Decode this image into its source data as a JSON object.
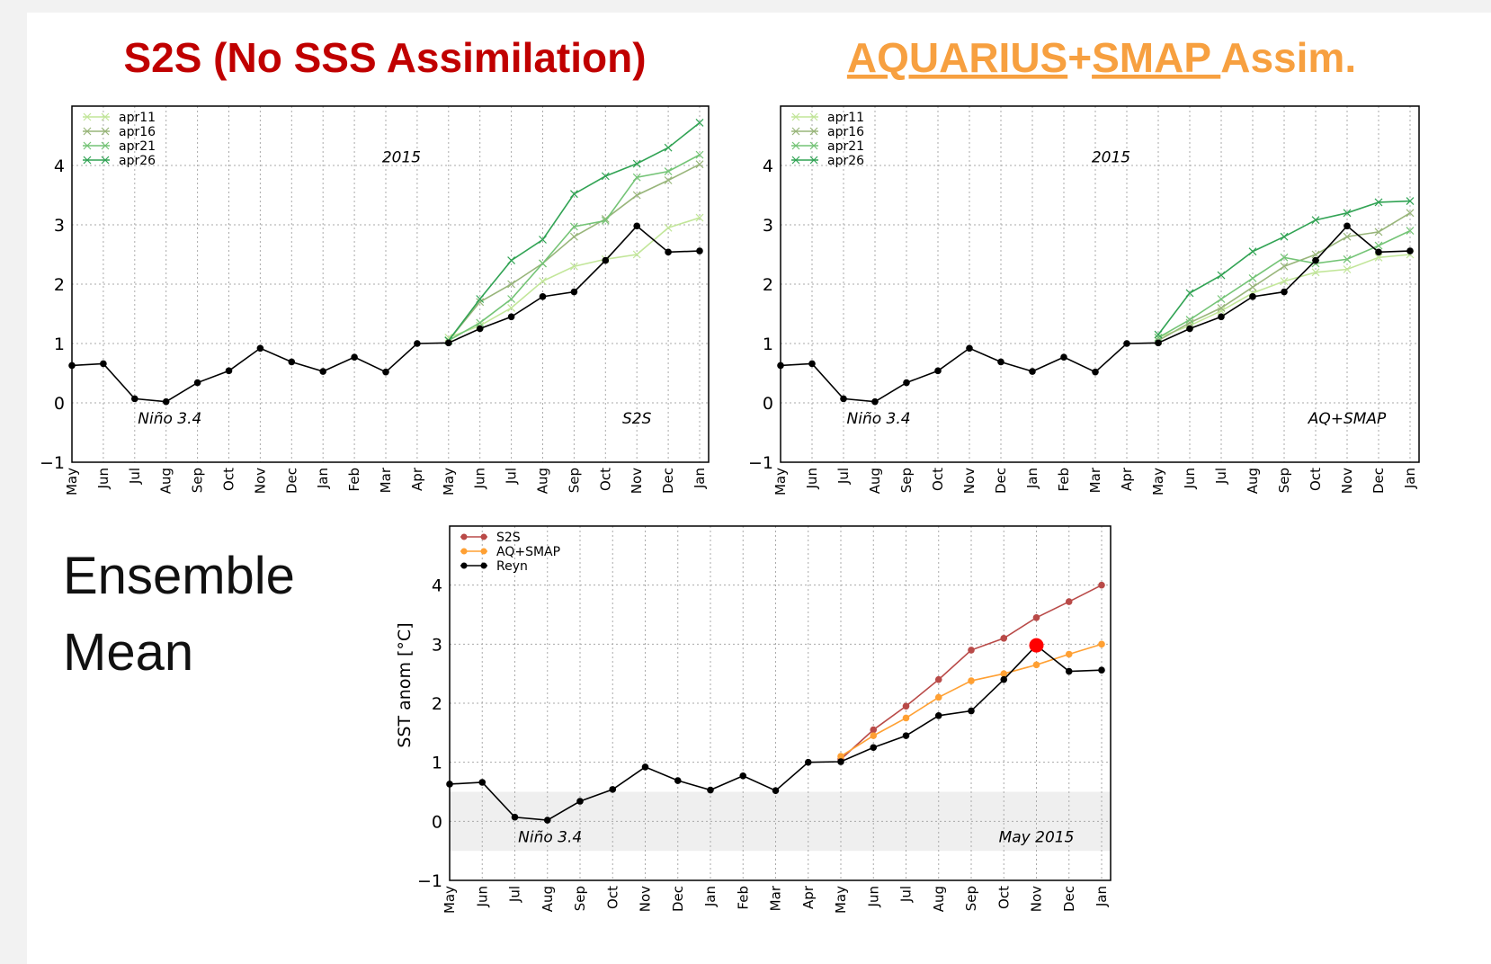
{
  "slide": {
    "title_left": "S2S (No SSS Assimilation)",
    "title_right_parts": [
      "AQUARIUS",
      "+",
      "SMAP ",
      "Assim."
    ],
    "label_lines": [
      "Ensemble",
      "Mean"
    ]
  },
  "chart_data": [
    {
      "type": "line",
      "year_label": "2015",
      "region_label": "Niño 3.4",
      "run_label": "S2S",
      "categories": [
        "May",
        "Jun",
        "Jul",
        "Aug",
        "Sep",
        "Oct",
        "Nov",
        "Dec",
        "Jan",
        "Feb",
        "Mar",
        "Apr",
        "May",
        "Jun",
        "Jul",
        "Aug",
        "Sep",
        "Oct",
        "Nov",
        "Dec",
        "Jan"
      ],
      "ylim": [
        -1,
        5
      ],
      "yticks": [
        {
          "value": -1,
          "label": "−1"
        },
        0,
        1,
        2,
        3,
        4
      ],
      "grid": true,
      "legend": "upper left",
      "series": [
        {
          "name": "apr11",
          "color": "#c2e699",
          "marker": "x",
          "values": [
            null,
            null,
            null,
            null,
            null,
            null,
            null,
            null,
            null,
            null,
            null,
            null,
            1.1,
            1.3,
            1.6,
            2.05,
            2.3,
            2.42,
            2.5,
            2.95,
            3.12
          ]
        },
        {
          "name": "apr16",
          "color": "#98b57a",
          "marker": "x",
          "values": [
            null,
            null,
            null,
            null,
            null,
            null,
            null,
            null,
            null,
            null,
            null,
            null,
            1.05,
            1.7,
            2.0,
            2.35,
            2.8,
            3.1,
            3.5,
            3.75,
            4.02
          ]
        },
        {
          "name": "apr21",
          "color": "#74c476",
          "marker": "x",
          "values": [
            null,
            null,
            null,
            null,
            null,
            null,
            null,
            null,
            null,
            null,
            null,
            null,
            1.05,
            1.35,
            1.75,
            2.35,
            2.97,
            3.07,
            3.8,
            3.9,
            4.18
          ]
        },
        {
          "name": "apr26",
          "color": "#31a354",
          "marker": "x",
          "values": [
            null,
            null,
            null,
            null,
            null,
            null,
            null,
            null,
            null,
            null,
            null,
            null,
            1.05,
            1.75,
            2.4,
            2.75,
            3.52,
            3.82,
            4.03,
            4.3,
            4.72
          ]
        },
        {
          "color": "#000000",
          "marker": "o",
          "values": [
            0.63,
            0.66,
            0.07,
            0.02,
            0.34,
            0.54,
            0.92,
            0.69,
            0.53,
            0.77,
            0.52,
            1.0,
            1.01,
            1.25,
            1.45,
            1.79,
            1.87,
            2.4,
            2.98,
            2.54,
            2.56
          ]
        }
      ]
    },
    {
      "type": "line",
      "year_label": "2015",
      "region_label": "Niño 3.4",
      "run_label": "AQ+SMAP",
      "categories": [
        "May",
        "Jun",
        "Jul",
        "Aug",
        "Sep",
        "Oct",
        "Nov",
        "Dec",
        "Jan",
        "Feb",
        "Mar",
        "Apr",
        "May",
        "Jun",
        "Jul",
        "Aug",
        "Sep",
        "Oct",
        "Nov",
        "Dec",
        "Jan"
      ],
      "ylim": [
        -1,
        5
      ],
      "yticks": [
        {
          "value": -1,
          "label": "−1"
        },
        0,
        1,
        2,
        3,
        4
      ],
      "grid": true,
      "legend": "upper left",
      "series": [
        {
          "name": "apr11",
          "color": "#c2e699",
          "marker": "x",
          "values": [
            null,
            null,
            null,
            null,
            null,
            null,
            null,
            null,
            null,
            null,
            null,
            null,
            1.1,
            1.3,
            1.55,
            1.85,
            2.05,
            2.2,
            2.25,
            2.45,
            2.5
          ]
        },
        {
          "name": "apr16",
          "color": "#98b57a",
          "marker": "x",
          "values": [
            null,
            null,
            null,
            null,
            null,
            null,
            null,
            null,
            null,
            null,
            null,
            null,
            1.05,
            1.35,
            1.6,
            1.95,
            2.3,
            2.5,
            2.8,
            2.88,
            3.2
          ]
        },
        {
          "name": "apr21",
          "color": "#74c476",
          "marker": "x",
          "values": [
            null,
            null,
            null,
            null,
            null,
            null,
            null,
            null,
            null,
            null,
            null,
            null,
            1.1,
            1.4,
            1.75,
            2.1,
            2.45,
            2.35,
            2.42,
            2.65,
            2.9
          ]
        },
        {
          "name": "apr26",
          "color": "#31a354",
          "marker": "x",
          "values": [
            null,
            null,
            null,
            null,
            null,
            null,
            null,
            null,
            null,
            null,
            null,
            null,
            1.15,
            1.85,
            2.15,
            2.55,
            2.8,
            3.08,
            3.2,
            3.38,
            3.4
          ]
        },
        {
          "color": "#000000",
          "marker": "o",
          "values": [
            0.63,
            0.66,
            0.07,
            0.02,
            0.34,
            0.54,
            0.92,
            0.69,
            0.53,
            0.77,
            0.52,
            1.0,
            1.01,
            1.25,
            1.45,
            1.79,
            1.87,
            2.4,
            2.98,
            2.54,
            2.56
          ]
        }
      ]
    },
    {
      "type": "line",
      "y_label": "SST anom [°C]",
      "region_label": "Niño 3.4",
      "run_label": "May 2015",
      "categories": [
        "May",
        "Jun",
        "Jul",
        "Aug",
        "Sep",
        "Oct",
        "Nov",
        "Dec",
        "Jan",
        "Feb",
        "Mar",
        "Apr",
        "May",
        "Jun",
        "Jul",
        "Aug",
        "Sep",
        "Oct",
        "Nov",
        "Dec",
        "Jan"
      ],
      "ylim": [
        -1,
        5
      ],
      "yticks": [
        {
          "value": -1,
          "label": "−1"
        },
        0,
        1,
        2,
        3,
        4
      ],
      "grid": true,
      "legend": "upper left",
      "band": [
        -0.5,
        0.5
      ],
      "highlight": {
        "series": 2,
        "index": 18,
        "color": "#ff0000"
      },
      "series": [
        {
          "name": "S2S",
          "color": "#b94a48",
          "marker": "o",
          "values": [
            null,
            null,
            null,
            null,
            null,
            null,
            null,
            null,
            null,
            null,
            null,
            null,
            1.05,
            1.55,
            1.95,
            2.4,
            2.9,
            3.1,
            3.45,
            3.72,
            4.0
          ]
        },
        {
          "name": "AQ+SMAP",
          "color": "#ffa033",
          "marker": "o",
          "values": [
            null,
            null,
            null,
            null,
            null,
            null,
            null,
            null,
            null,
            null,
            null,
            null,
            1.1,
            1.45,
            1.75,
            2.1,
            2.38,
            2.5,
            2.65,
            2.83,
            3.0
          ]
        },
        {
          "name": "Reyn",
          "color": "#000000",
          "marker": "o",
          "values": [
            0.63,
            0.66,
            0.07,
            0.02,
            0.34,
            0.54,
            0.92,
            0.69,
            0.53,
            0.77,
            0.52,
            1.0,
            1.01,
            1.25,
            1.45,
            1.79,
            1.87,
            2.4,
            2.98,
            2.54,
            2.56
          ]
        }
      ]
    }
  ]
}
